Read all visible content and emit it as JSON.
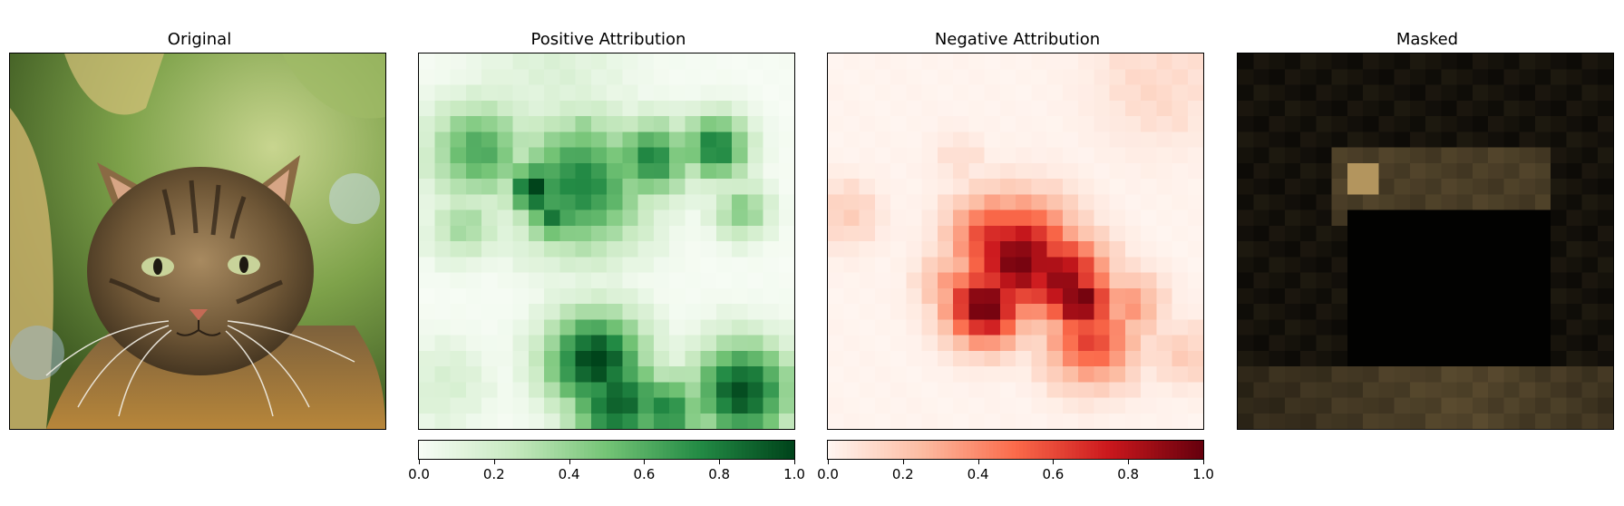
{
  "chart_data": [
    {
      "type": "image",
      "title": "Original",
      "content": "photo of a tabby cat against green foliage"
    },
    {
      "type": "heatmap",
      "title": "Positive Attribution",
      "colormap": "Greens",
      "colorbar": {
        "min": 0.0,
        "max": 1.0,
        "ticks": [
          "0.0",
          "0.2",
          "0.4",
          "0.6",
          "0.8",
          "1.0"
        ]
      },
      "grid_size": 24,
      "hotspots": [
        {
          "cx": 0.31,
          "cy": 0.36,
          "r": 0.05,
          "v": 1.0
        },
        {
          "cx": 0.43,
          "cy": 0.35,
          "r": 0.12,
          "v": 0.75
        },
        {
          "cx": 0.62,
          "cy": 0.28,
          "r": 0.07,
          "v": 0.75
        },
        {
          "cx": 0.79,
          "cy": 0.25,
          "r": 0.06,
          "v": 0.8
        },
        {
          "cx": 0.16,
          "cy": 0.26,
          "r": 0.09,
          "v": 0.6
        },
        {
          "cx": 0.36,
          "cy": 0.43,
          "r": 0.05,
          "v": 0.8
        },
        {
          "cx": 0.44,
          "cy": 0.22,
          "r": 0.04,
          "v": 0.5
        },
        {
          "cx": 0.86,
          "cy": 0.42,
          "r": 0.05,
          "v": 0.45
        },
        {
          "cx": 0.12,
          "cy": 0.46,
          "r": 0.06,
          "v": 0.35
        },
        {
          "cx": 0.47,
          "cy": 0.82,
          "r": 0.09,
          "v": 1.0
        },
        {
          "cx": 0.53,
          "cy": 0.93,
          "r": 0.09,
          "v": 0.9
        },
        {
          "cx": 0.66,
          "cy": 0.95,
          "r": 0.07,
          "v": 0.75
        },
        {
          "cx": 0.86,
          "cy": 0.9,
          "r": 0.09,
          "v": 0.95
        },
        {
          "cx": 0.92,
          "cy": 0.95,
          "r": 0.05,
          "v": 0.6
        },
        {
          "cx": 0.07,
          "cy": 0.88,
          "r": 0.08,
          "v": 0.15
        },
        {
          "cx": 0.35,
          "cy": 0.05,
          "r": 0.15,
          "v": 0.12
        }
      ]
    },
    {
      "type": "heatmap",
      "title": "Negative Attribution",
      "colormap": "Reds",
      "colorbar": {
        "min": 0.0,
        "max": 1.0,
        "ticks": [
          "0.0",
          "0.2",
          "0.4",
          "0.6",
          "0.8",
          "1.0"
        ]
      },
      "grid_size": 24,
      "hotspots": [
        {
          "cx": 0.42,
          "cy": 0.67,
          "r": 0.07,
          "v": 1.0
        },
        {
          "cx": 0.51,
          "cy": 0.55,
          "r": 0.1,
          "v": 0.95
        },
        {
          "cx": 0.62,
          "cy": 0.6,
          "r": 0.08,
          "v": 0.9
        },
        {
          "cx": 0.67,
          "cy": 0.66,
          "r": 0.06,
          "v": 1.0
        },
        {
          "cx": 0.45,
          "cy": 0.5,
          "r": 0.08,
          "v": 0.7
        },
        {
          "cx": 0.7,
          "cy": 0.76,
          "r": 0.08,
          "v": 0.6
        },
        {
          "cx": 0.56,
          "cy": 0.47,
          "r": 0.07,
          "v": 0.45
        },
        {
          "cx": 0.8,
          "cy": 0.67,
          "r": 0.06,
          "v": 0.35
        },
        {
          "cx": 0.34,
          "cy": 0.62,
          "r": 0.06,
          "v": 0.35
        },
        {
          "cx": 0.05,
          "cy": 0.43,
          "r": 0.06,
          "v": 0.15
        },
        {
          "cx": 0.88,
          "cy": 0.08,
          "r": 0.12,
          "v": 0.1
        },
        {
          "cx": 0.95,
          "cy": 0.8,
          "r": 0.06,
          "v": 0.15
        },
        {
          "cx": 0.35,
          "cy": 0.28,
          "r": 0.05,
          "v": 0.08
        }
      ]
    },
    {
      "type": "image",
      "title": "Masked",
      "content": "cat photo masked to dark patches, bright patch near upper left of head"
    }
  ]
}
